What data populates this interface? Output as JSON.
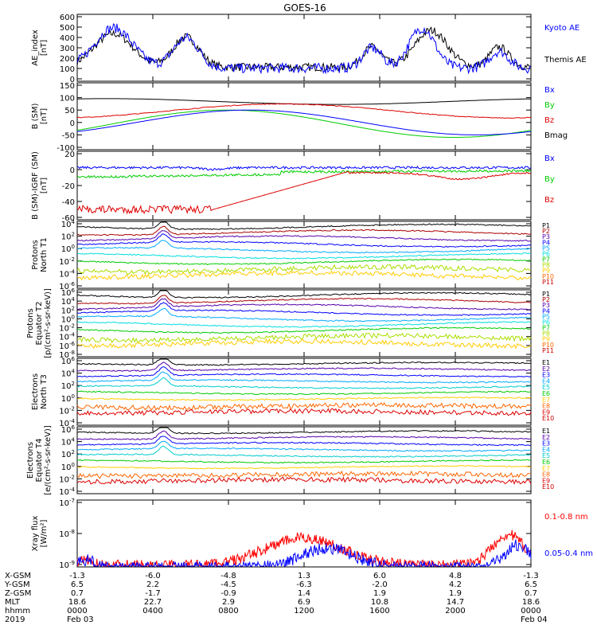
{
  "title": "GOES-16",
  "panels": [
    {
      "id": "ae",
      "ylabel": [
        "AE_index",
        "[nT]"
      ],
      "yticks": [
        "600",
        "500",
        "400",
        "300",
        "200",
        "100",
        "0"
      ],
      "legend": [
        {
          "label": "Kyoto AE",
          "color": "#0000ff"
        },
        {
          "label": "Themis AE",
          "color": "#000000"
        }
      ]
    },
    {
      "id": "b",
      "ylabel": [
        "B (SM)",
        "[nT]"
      ],
      "yticks": [
        "150",
        "100",
        "50",
        "0",
        "-50",
        "-100"
      ],
      "legend": [
        {
          "label": "Bx",
          "color": "#0000ff"
        },
        {
          "label": "By",
          "color": "#00cc00"
        },
        {
          "label": "Bz",
          "color": "#dd0000"
        },
        {
          "label": "Bmag",
          "color": "#000000"
        }
      ]
    },
    {
      "id": "bigrf",
      "ylabel": [
        "B (SM)-IGRF (SM)",
        "[nT]"
      ],
      "yticks": [
        "20",
        "0",
        "-20",
        "-40",
        "-60"
      ],
      "legend": [
        {
          "label": "Bx",
          "color": "#0000ff"
        },
        {
          "label": "By",
          "color": "#00cc00"
        },
        {
          "label": "Bz",
          "color": "#dd0000"
        }
      ]
    },
    {
      "id": "pnt1",
      "ylabel": [
        "Protons",
        "North T1"
      ],
      "yticks": [
        "10^4",
        "10^2",
        "10^0",
        "10^-2",
        "10^-4",
        "10^-6"
      ],
      "legend": [
        "P1",
        "P2",
        "P3",
        "P4",
        "P5",
        "P6",
        "P7",
        "P8",
        "P9",
        "P10",
        "P11"
      ]
    },
    {
      "id": "pet2",
      "ylabel": [
        "Protons",
        "Equator T2",
        "[p/(cm²-s-sr-keV)]"
      ],
      "yticks": [
        "10^6",
        "10^4",
        "10^2",
        "10^0",
        "10^-2",
        "10^-4",
        "10^-6",
        "10^-8"
      ],
      "legend": [
        "P1",
        "P2",
        "P3",
        "P4",
        "P5",
        "P6",
        "P7",
        "P8",
        "P9",
        "P10",
        "P11"
      ]
    },
    {
      "id": "ent3",
      "ylabel": [
        "Electrons",
        "North T3"
      ],
      "yticks": [
        "10^6",
        "10^4",
        "10^2",
        "10^0",
        "10^-2",
        "10^-4"
      ],
      "legend": [
        "E1",
        "E2",
        "E3",
        "E4",
        "E5",
        "E6",
        "E7",
        "E8",
        "E9",
        "E10"
      ]
    },
    {
      "id": "eet4",
      "ylabel": [
        "Electrons",
        "Equator T4",
        "[e/(cm²-s-sr-keV)]"
      ],
      "yticks": [
        "10^6",
        "10^4",
        "10^2",
        "10^0",
        "10^-2",
        "10^-4"
      ],
      "legend": [
        "E1",
        "E2",
        "E3",
        "E4",
        "E5",
        "E6",
        "E7",
        "E8",
        "E9",
        "E10"
      ]
    },
    {
      "id": "xray",
      "ylabel": [
        "Xray flux",
        "[W/m²]"
      ],
      "yticks": [
        "10^-7",
        "10^-8",
        "10^-9"
      ],
      "legend": [
        {
          "label": "0.1-0.8 nm",
          "color": "#ff0000"
        },
        {
          "label": "0.05-0.4 nm",
          "color": "#0000ff"
        }
      ]
    }
  ],
  "channel_colors": {
    "P": [
      "#000000",
      "#aa0000",
      "#5500aa",
      "#0000ff",
      "#00aaff",
      "#00dddd",
      "#00cc00",
      "#aadd00",
      "#ffcc00",
      "#ff6600",
      "#cc0000"
    ],
    "E": [
      "#000000",
      "#5500aa",
      "#0000ff",
      "#00aaff",
      "#00cccc",
      "#00cc00",
      "#ffcc00",
      "#ff6600",
      "#dd0000",
      "#cc0000"
    ]
  },
  "axis_rows": [
    {
      "label": "X-GSM",
      "values": [
        "-1.3",
        "-6.0",
        "-4.8",
        "1.3",
        "6.0",
        "4.8",
        "-1.3"
      ]
    },
    {
      "label": "Y-GSM",
      "values": [
        "6.5",
        "2.2",
        "-4.5",
        "-6.3",
        "-2.0",
        "4.2",
        "6.5"
      ]
    },
    {
      "label": "Z-GSM",
      "values": [
        "0.7",
        "-1.7",
        "-0.9",
        "1.4",
        "1.9",
        "1.9",
        "0.7"
      ]
    },
    {
      "label": "MLT",
      "values": [
        "18.6",
        "22.7",
        "2.9",
        "6.9",
        "10.8",
        "14.7",
        "18.6"
      ]
    },
    {
      "label": "hhmm",
      "values": [
        "0000",
        "0400",
        "0800",
        "1200",
        "1600",
        "2000",
        "0000"
      ]
    }
  ],
  "date_row": {
    "label": "2019",
    "start": "Feb 03",
    "end": "Feb 04"
  }
}
